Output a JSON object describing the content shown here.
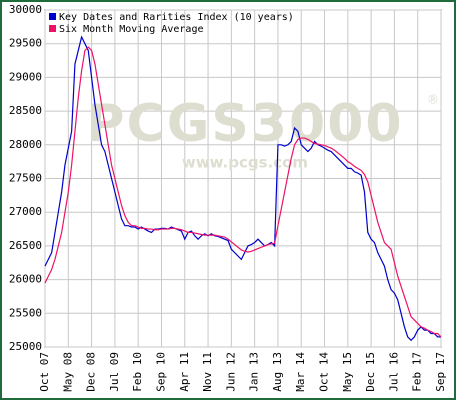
{
  "chart_data": {
    "type": "line",
    "watermark": "PCGS3000",
    "watermark_mark": "®",
    "watermark_url": "www.pcgs.com",
    "categories": [
      "Oct 07",
      null,
      null,
      null,
      null,
      null,
      null,
      "May 08",
      null,
      null,
      null,
      null,
      null,
      null,
      "Dec 08",
      null,
      null,
      null,
      null,
      null,
      null,
      "Jul 09",
      null,
      null,
      null,
      null,
      null,
      null,
      "Feb 10",
      null,
      null,
      null,
      null,
      null,
      null,
      "Sep 10",
      null,
      null,
      null,
      null,
      null,
      null,
      "Apr 11",
      null,
      null,
      null,
      null,
      null,
      null,
      "Nov 11",
      null,
      null,
      null,
      null,
      null,
      null,
      "Jun 12",
      null,
      null,
      null,
      null,
      null,
      null,
      "Jan 13",
      null,
      null,
      null,
      null,
      null,
      null,
      "Aug 13",
      null,
      null,
      null,
      null,
      null,
      null,
      "Mar 14",
      null,
      null,
      null,
      null,
      null,
      null,
      "Oct 14",
      null,
      null,
      null,
      null,
      null,
      null,
      "May 15",
      null,
      null,
      null,
      null,
      null,
      null,
      "Dec 15",
      null,
      null,
      null,
      null,
      null,
      null,
      "Jul 16",
      null,
      null,
      null,
      null,
      null,
      null,
      "Feb 17",
      null,
      null,
      null,
      null,
      null,
      null,
      "Sep 17"
    ],
    "series": [
      {
        "name": "Key Dates and Rarities Index (10 years)",
        "color": "#0000cc",
        "values": [
          26200,
          26300,
          26400,
          26700,
          27000,
          27300,
          27700,
          27950,
          28200,
          29200,
          29400,
          29600,
          29500,
          29400,
          29000,
          28600,
          28300,
          28000,
          27900,
          27700,
          27500,
          27300,
          27100,
          26900,
          26800,
          26800,
          26780,
          26780,
          26750,
          26780,
          26750,
          26720,
          26700,
          26750,
          26750,
          26760,
          26760,
          26750,
          26780,
          26760,
          26740,
          26720,
          26600,
          26700,
          26720,
          26650,
          26600,
          26650,
          26680,
          26650,
          26680,
          26650,
          26640,
          26620,
          26600,
          26580,
          26450,
          26400,
          26350,
          26300,
          26400,
          26500,
          26520,
          26550,
          26600,
          26550,
          26500,
          26520,
          26550,
          26500,
          28000,
          28000,
          27980,
          28000,
          28050,
          28250,
          28200,
          28000,
          27950,
          27900,
          27950,
          28050,
          28000,
          27980,
          27950,
          27920,
          27900,
          27850,
          27800,
          27750,
          27700,
          27650,
          27650,
          27600,
          27580,
          27550,
          27300,
          26700,
          26600,
          26550,
          26400,
          26300,
          26200,
          26000,
          25850,
          25800,
          25700,
          25500,
          25300,
          25150,
          25100,
          25150,
          25250,
          25300,
          25250,
          25250,
          25200,
          25200,
          25150,
          25150
        ]
      },
      {
        "name": "Six Month Moving Average",
        "color": "#ee1166",
        "values": [
          25950,
          26050,
          26150,
          26300,
          26500,
          26700,
          27000,
          27300,
          27700,
          28200,
          28700,
          29100,
          29400,
          29450,
          29400,
          29200,
          28900,
          28600,
          28300,
          28000,
          27700,
          27500,
          27300,
          27100,
          26950,
          26850,
          26800,
          26800,
          26780,
          26760,
          26760,
          26750,
          26750,
          26740,
          26740,
          26750,
          26750,
          26750,
          26760,
          26760,
          26750,
          26740,
          26720,
          26700,
          26700,
          26690,
          26680,
          26670,
          26660,
          26660,
          26660,
          26660,
          26650,
          26640,
          26630,
          26600,
          26560,
          26520,
          26480,
          26440,
          26420,
          26410,
          26420,
          26440,
          26460,
          26480,
          26500,
          26520,
          26530,
          26540,
          26800,
          27050,
          27300,
          27550,
          27800,
          28000,
          28080,
          28100,
          28100,
          28080,
          28050,
          28020,
          28010,
          28000,
          27990,
          27970,
          27950,
          27920,
          27880,
          27840,
          27800,
          27750,
          27720,
          27680,
          27650,
          27620,
          27560,
          27450,
          27250,
          27050,
          26850,
          26700,
          26550,
          26500,
          26450,
          26250,
          26050,
          25900,
          25750,
          25600,
          25450,
          25400,
          25350,
          25300,
          25280,
          25250,
          25230,
          25200,
          25200,
          25150
        ]
      }
    ],
    "ylim": [
      25000,
      30000
    ],
    "yticks": [
      25000,
      25500,
      26000,
      26500,
      27000,
      27500,
      28000,
      28500,
      29000,
      29500,
      30000
    ],
    "grid": true,
    "legend": "upper-left"
  }
}
